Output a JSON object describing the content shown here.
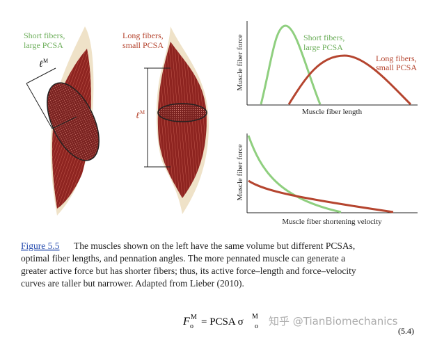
{
  "figure": {
    "left": {
      "short_label": [
        "Short fibers,",
        "large PCSA"
      ],
      "long_label": [
        "Long fibers,",
        "small PCSA"
      ],
      "length_symbol": "ℓ",
      "length_superscript": "M"
    },
    "top_plot": {
      "y_label": "Muscle fiber force",
      "x_label": "Muscle fiber length",
      "short_label": [
        "Short fibers,",
        "large PCSA"
      ],
      "long_label": [
        "Long fibers,",
        "small PCSA"
      ]
    },
    "bottom_plot": {
      "y_label": "Muscle fiber force",
      "x_label": "Muscle fiber shortening velocity"
    },
    "caption": {
      "link": "Figure 5.5",
      "lines": [
        "The muscles shown on the left have the same volume but different PCSAs,",
        "optimal fiber lengths, and pennation angles. The more pennated muscle can generate a",
        "greater active force but has shorter fibers; thus, its active force–length and force–velocity",
        "curves are taller but narrower. Adapted from Lieber (2010)."
      ]
    },
    "equation": {
      "force": "F",
      "force_sub": "o",
      "force_sup": "M",
      "middle": "= PCSA σ",
      "sigma_sub": "o",
      "sigma_sup": "M",
      "number": "(5.4)"
    },
    "watermark": "知乎 @TianBiomechanics"
  }
}
